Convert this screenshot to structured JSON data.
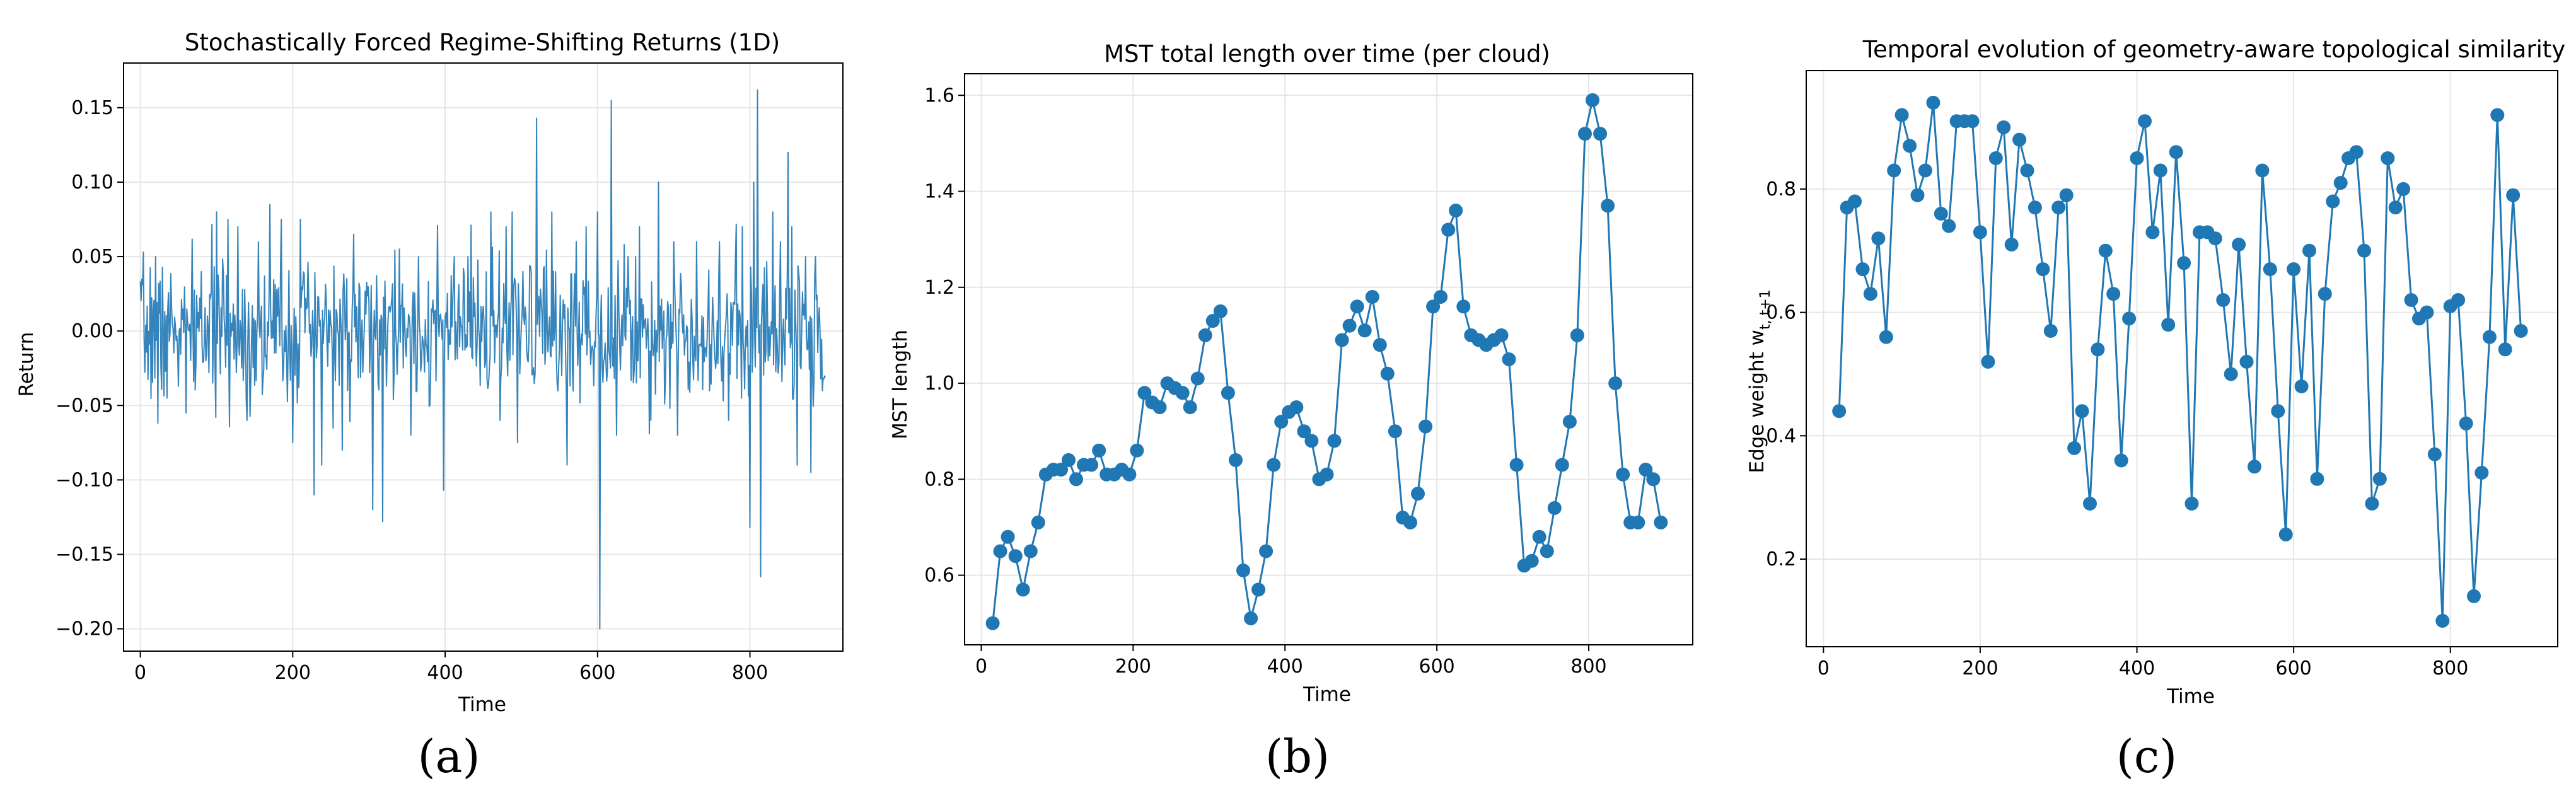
{
  "figure": {
    "captions": [
      "(a)",
      "(b)",
      "(c)"
    ],
    "line_color": "#1f77b4"
  },
  "chart_data": [
    {
      "type": "line",
      "title": "Stochastically Forced Regime-Shifting Returns (1D)",
      "xlabel": "Time",
      "ylabel": "Return",
      "xlim": [
        -22,
        922
      ],
      "ylim": [
        -0.215,
        0.18
      ],
      "xticks": [
        0,
        200,
        400,
        600,
        800
      ],
      "yticks": [
        -0.2,
        -0.15,
        -0.1,
        -0.05,
        0.0,
        0.05,
        0.1,
        0.15
      ],
      "ytick_labels": [
        "−0.20",
        "−0.15",
        "−0.10",
        "−0.05",
        "0.00",
        "0.05",
        "0.10",
        "0.15"
      ],
      "grid": true,
      "series": [
        {
          "x_start": 0,
          "x_step": 1,
          "count": 900,
          "base_amplitude": 0.023,
          "spikes": [
            [
              20,
              0.05
            ],
            [
              23,
              -0.062
            ],
            [
              35,
              -0.045
            ],
            [
              60,
              -0.055
            ],
            [
              80,
              0.04
            ],
            [
              100,
              0.08
            ],
            [
              115,
              0.075
            ],
            [
              128,
              0.07
            ],
            [
              140,
              -0.06
            ],
            [
              155,
              0.06
            ],
            [
              170,
              0.085
            ],
            [
              185,
              0.075
            ],
            [
              200,
              -0.075
            ],
            [
              210,
              0.075
            ],
            [
              228,
              -0.11
            ],
            [
              238,
              -0.09
            ],
            [
              265,
              -0.08
            ],
            [
              280,
              0.065
            ],
            [
              305,
              -0.12
            ],
            [
              318,
              -0.128
            ],
            [
              340,
              0.055
            ],
            [
              355,
              -0.07
            ],
            [
              365,
              0.05
            ],
            [
              380,
              -0.05
            ],
            [
              398,
              -0.107
            ],
            [
              412,
              0.05
            ],
            [
              430,
              0.05
            ],
            [
              460,
              0.08
            ],
            [
              472,
              -0.06
            ],
            [
              480,
              0.07
            ],
            [
              488,
              0.08
            ],
            [
              495,
              -0.075
            ],
            [
              520,
              0.143
            ],
            [
              540,
              0.08
            ],
            [
              560,
              -0.09
            ],
            [
              572,
              0.06
            ],
            [
              585,
              0.07
            ],
            [
              600,
              0.08
            ],
            [
              603,
              -0.2
            ],
            [
              618,
              0.155
            ],
            [
              625,
              -0.07
            ],
            [
              640,
              0.05
            ],
            [
              655,
              0.07
            ],
            [
              670,
              -0.06
            ],
            [
              680,
              0.1
            ],
            [
              700,
              0.06
            ],
            [
              705,
              -0.07
            ],
            [
              730,
              0.06
            ],
            [
              760,
              0.06
            ],
            [
              772,
              -0.06
            ],
            [
              790,
              0.07
            ],
            [
              800,
              -0.132
            ],
            [
              805,
              0.1
            ],
            [
              810,
              0.162
            ],
            [
              814,
              -0.165
            ],
            [
              830,
              0.08
            ],
            [
              840,
              0.06
            ],
            [
              850,
              0.12
            ],
            [
              855,
              0.07
            ],
            [
              862,
              -0.09
            ],
            [
              873,
              0.05
            ],
            [
              880,
              -0.095
            ],
            [
              886,
              0.05
            ],
            [
              895,
              -0.04
            ]
          ]
        }
      ]
    },
    {
      "type": "line",
      "title": "MST total length over time (per cloud)",
      "xlabel": "Time",
      "ylabel": "MST length",
      "xlim": [
        -22,
        937
      ],
      "ylim": [
        0.455,
        1.645
      ],
      "xticks": [
        0,
        200,
        400,
        600,
        800
      ],
      "yticks": [
        0.6,
        0.8,
        1.0,
        1.2,
        1.4,
        1.6
      ],
      "ytick_labels": [
        "0.6",
        "0.8",
        "1.0",
        "1.2",
        "1.4",
        "1.6"
      ],
      "grid": true,
      "series": [
        {
          "x": [
            15,
            25,
            35,
            45,
            55,
            65,
            75,
            85,
            95,
            105,
            115,
            125,
            135,
            145,
            155,
            165,
            175,
            185,
            195,
            205,
            215,
            225,
            235,
            245,
            255,
            265,
            275,
            285,
            295,
            305,
            315,
            325,
            335,
            345,
            355,
            365,
            375,
            385,
            395,
            405,
            415,
            425,
            435,
            445,
            455,
            465,
            475,
            485,
            495,
            505,
            515,
            525,
            535,
            545,
            555,
            565,
            575,
            585,
            595,
            605,
            615,
            625,
            635,
            645,
            655,
            665,
            675,
            685,
            695,
            705,
            715,
            725,
            735,
            745,
            755,
            765,
            775,
            785,
            795,
            805,
            815,
            825,
            835,
            845,
            855,
            865,
            875,
            885,
            895
          ],
          "y": [
            0.5,
            0.65,
            0.68,
            0.64,
            0.57,
            0.65,
            0.71,
            0.81,
            0.82,
            0.82,
            0.84,
            0.8,
            0.83,
            0.83,
            0.86,
            0.81,
            0.81,
            0.82,
            0.81,
            0.86,
            0.98,
            0.96,
            0.95,
            1.0,
            0.99,
            0.98,
            0.95,
            1.01,
            1.1,
            1.13,
            1.15,
            0.98,
            0.84,
            0.61,
            0.51,
            0.57,
            0.65,
            0.83,
            0.92,
            0.94,
            0.95,
            0.9,
            0.88,
            0.8,
            0.81,
            0.88,
            1.09,
            1.12,
            1.16,
            1.11,
            1.18,
            1.08,
            1.02,
            0.9,
            0.72,
            0.71,
            0.77,
            0.91,
            1.16,
            1.18,
            1.32,
            1.36,
            1.16,
            1.1,
            1.09,
            1.08,
            1.09,
            1.1,
            1.05,
            0.83,
            0.62,
            0.63,
            0.68,
            0.65,
            0.74,
            0.83,
            0.92,
            1.1,
            1.52,
            1.59,
            1.52,
            1.37,
            1.0,
            0.81,
            0.71,
            0.71,
            0.82,
            0.8,
            0.71
          ]
        }
      ]
    },
    {
      "type": "line",
      "title": "Temporal evolution of geometry-aware topological similarity",
      "xlabel": "Time",
      "ylabel": "Edge weight w",
      "ylabel_subscript": "t, t+1",
      "xlim": [
        -22,
        937
      ],
      "ylim": [
        0.058,
        0.992
      ],
      "xticks": [
        0,
        200,
        400,
        600,
        800
      ],
      "yticks": [
        0.2,
        0.4,
        0.6,
        0.8
      ],
      "ytick_labels": [
        "0.2",
        "0.4",
        "0.6",
        "0.8"
      ],
      "grid": true,
      "series": [
        {
          "x": [
            20,
            30,
            40,
            50,
            60,
            70,
            80,
            90,
            100,
            110,
            120,
            130,
            140,
            150,
            160,
            170,
            180,
            190,
            200,
            210,
            220,
            230,
            240,
            250,
            260,
            270,
            280,
            290,
            300,
            310,
            320,
            330,
            340,
            350,
            360,
            370,
            380,
            390,
            400,
            410,
            420,
            430,
            440,
            450,
            460,
            470,
            480,
            490,
            500,
            510,
            520,
            530,
            540,
            550,
            560,
            570,
            580,
            590,
            600,
            610,
            620,
            630,
            640,
            650,
            660,
            670,
            680,
            690,
            700,
            710,
            720,
            730,
            740,
            750,
            760,
            770,
            780,
            790,
            800,
            810,
            820,
            830,
            840,
            850,
            860,
            870,
            880,
            890
          ],
          "y": [
            0.44,
            0.77,
            0.78,
            0.67,
            0.63,
            0.72,
            0.56,
            0.83,
            0.92,
            0.87,
            0.79,
            0.83,
            0.94,
            0.76,
            0.74,
            0.91,
            0.91,
            0.91,
            0.73,
            0.52,
            0.85,
            0.9,
            0.71,
            0.88,
            0.83,
            0.77,
            0.67,
            0.57,
            0.77,
            0.79,
            0.38,
            0.44,
            0.29,
            0.54,
            0.7,
            0.63,
            0.36,
            0.59,
            0.85,
            0.91,
            0.73,
            0.83,
            0.58,
            0.86,
            0.68,
            0.29,
            0.73,
            0.73,
            0.72,
            0.62,
            0.5,
            0.71,
            0.52,
            0.35,
            0.83,
            0.67,
            0.44,
            0.24,
            0.67,
            0.48,
            0.7,
            0.33,
            0.63,
            0.78,
            0.81,
            0.85,
            0.86,
            0.7,
            0.29,
            0.33,
            0.85,
            0.77,
            0.8,
            0.62,
            0.59,
            0.6,
            0.37,
            0.1,
            0.61,
            0.62,
            0.42,
            0.14,
            0.34,
            0.56,
            0.92,
            0.54,
            0.79,
            0.57
          ]
        }
      ]
    }
  ]
}
